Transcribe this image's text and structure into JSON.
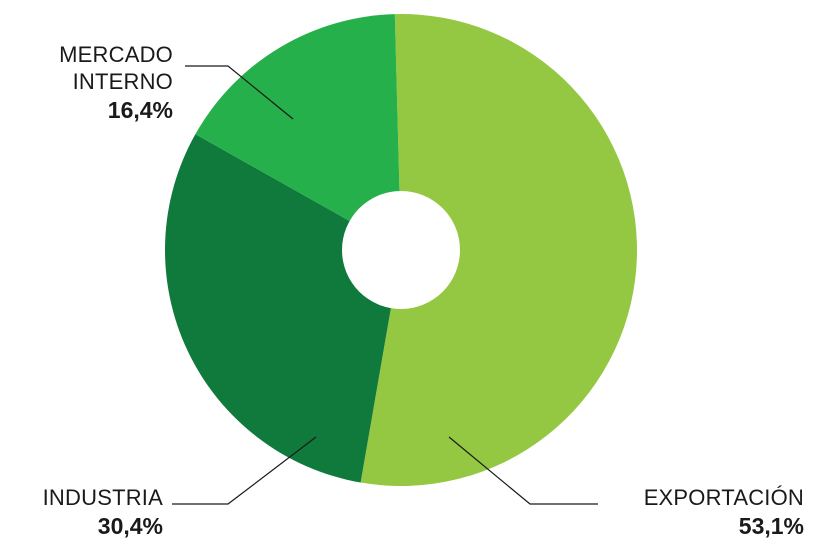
{
  "chart_data": {
    "type": "pie",
    "variant": "donut",
    "slices": [
      {
        "label_lines": [
          "EXPORTACIÓN"
        ],
        "value_label": "53,1%",
        "value": 53.1,
        "color": "#95c842"
      },
      {
        "label_lines": [
          "INDUSTRIA"
        ],
        "value_label": "30,4%",
        "value": 30.4,
        "color": "#0f7a3c"
      },
      {
        "label_lines": [
          "MERCADO",
          "INTERNO"
        ],
        "value_label": "16,4%",
        "value": 16.4,
        "color": "#26b04b"
      }
    ],
    "start_angle_deg": 358.5,
    "direction": "clockwise",
    "background": "#ffffff",
    "hole_color": "#ffffff",
    "leader_color": "#1a1a1a"
  }
}
